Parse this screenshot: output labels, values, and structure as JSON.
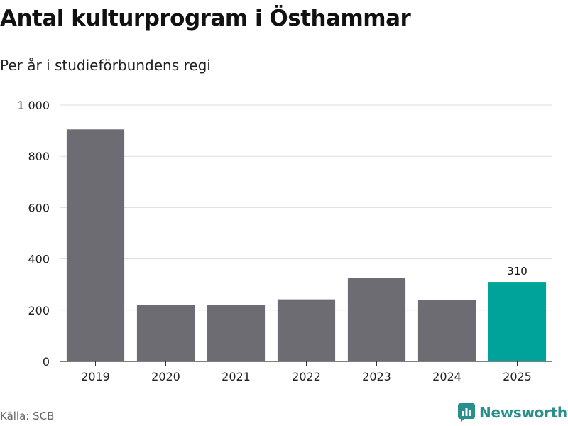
{
  "header": {
    "title": "Antal kulturprogram i Östhammar",
    "subtitle": "Per år i studieförbundens regi"
  },
  "footer": {
    "source": "Källa: SCB",
    "brand": "Newsworthy"
  },
  "colors": {
    "bar": "#6d6c72",
    "highlight": "#00a39a",
    "grid": "#dddddd",
    "axis": "#333333",
    "brand": "#2a8f8c"
  },
  "chart_data": {
    "type": "bar",
    "categories": [
      "2019",
      "2020",
      "2021",
      "2022",
      "2023",
      "2024",
      "2025"
    ],
    "values": [
      905,
      220,
      220,
      242,
      325,
      240,
      310
    ],
    "highlight_index": 6,
    "data_labels": [
      null,
      null,
      null,
      null,
      null,
      null,
      "310"
    ],
    "yticks": [
      0,
      200,
      400,
      600,
      800,
      1000
    ],
    "ytick_labels": [
      "0",
      "200",
      "400",
      "600",
      "800",
      "1 000"
    ],
    "ylim": [
      0,
      1000
    ],
    "grid": true,
    "title": "Antal kulturprogram i Östhammar",
    "subtitle": "Per år i studieförbundens regi",
    "xlabel": "",
    "ylabel": ""
  }
}
